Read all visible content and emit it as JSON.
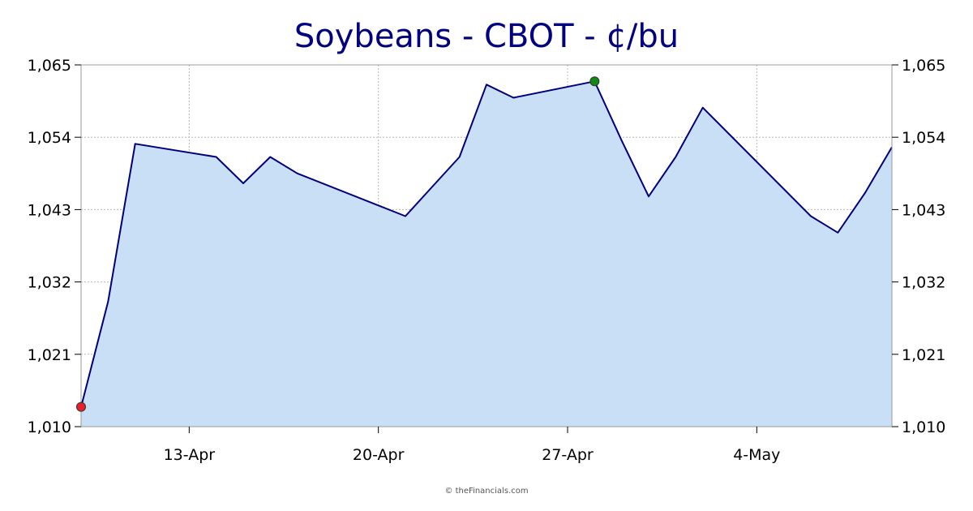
{
  "chart_data": {
    "type": "area",
    "title": "Soybeans - CBOT - ¢/bu",
    "credit": "© theFinancials.com",
    "ylim": [
      1010,
      1065
    ],
    "y_ticks": [
      1010,
      1021,
      1032,
      1043,
      1054,
      1065
    ],
    "y_tick_labels": [
      "1,010",
      "1,021",
      "1,032",
      "1,043",
      "1,054",
      "1,065"
    ],
    "x_tick_labels": [
      {
        "index": 4,
        "label": "13-Apr"
      },
      {
        "index": 11,
        "label": "20-Apr"
      },
      {
        "index": 18,
        "label": "27-Apr"
      },
      {
        "index": 25,
        "label": "4-May"
      }
    ],
    "x_range": [
      0,
      30
    ],
    "series": [
      {
        "x": [
          0,
          1,
          2,
          5,
          6,
          7,
          8,
          12,
          13,
          14,
          15,
          16,
          19,
          20,
          21,
          22,
          23,
          27,
          28,
          29,
          30
        ],
        "values": [
          1013,
          1029,
          1053,
          1051,
          1047,
          1051,
          1048.5,
          1042,
          1046.5,
          1051,
          1062,
          1060,
          1062.5,
          1053.5,
          1045,
          1051,
          1058.5,
          1042,
          1039.5,
          1045.5,
          1052.5
        ]
      }
    ],
    "markers": [
      {
        "x": 0,
        "value": 1013,
        "meaning": "low",
        "color": "#e8202a"
      },
      {
        "x": 19,
        "value": 1062.5,
        "meaning": "high",
        "color": "#128a12"
      }
    ],
    "colors": {
      "title": "#000080",
      "line": "#00007f",
      "fill": "#c8dff5"
    },
    "grid": true,
    "right_axis": true
  }
}
